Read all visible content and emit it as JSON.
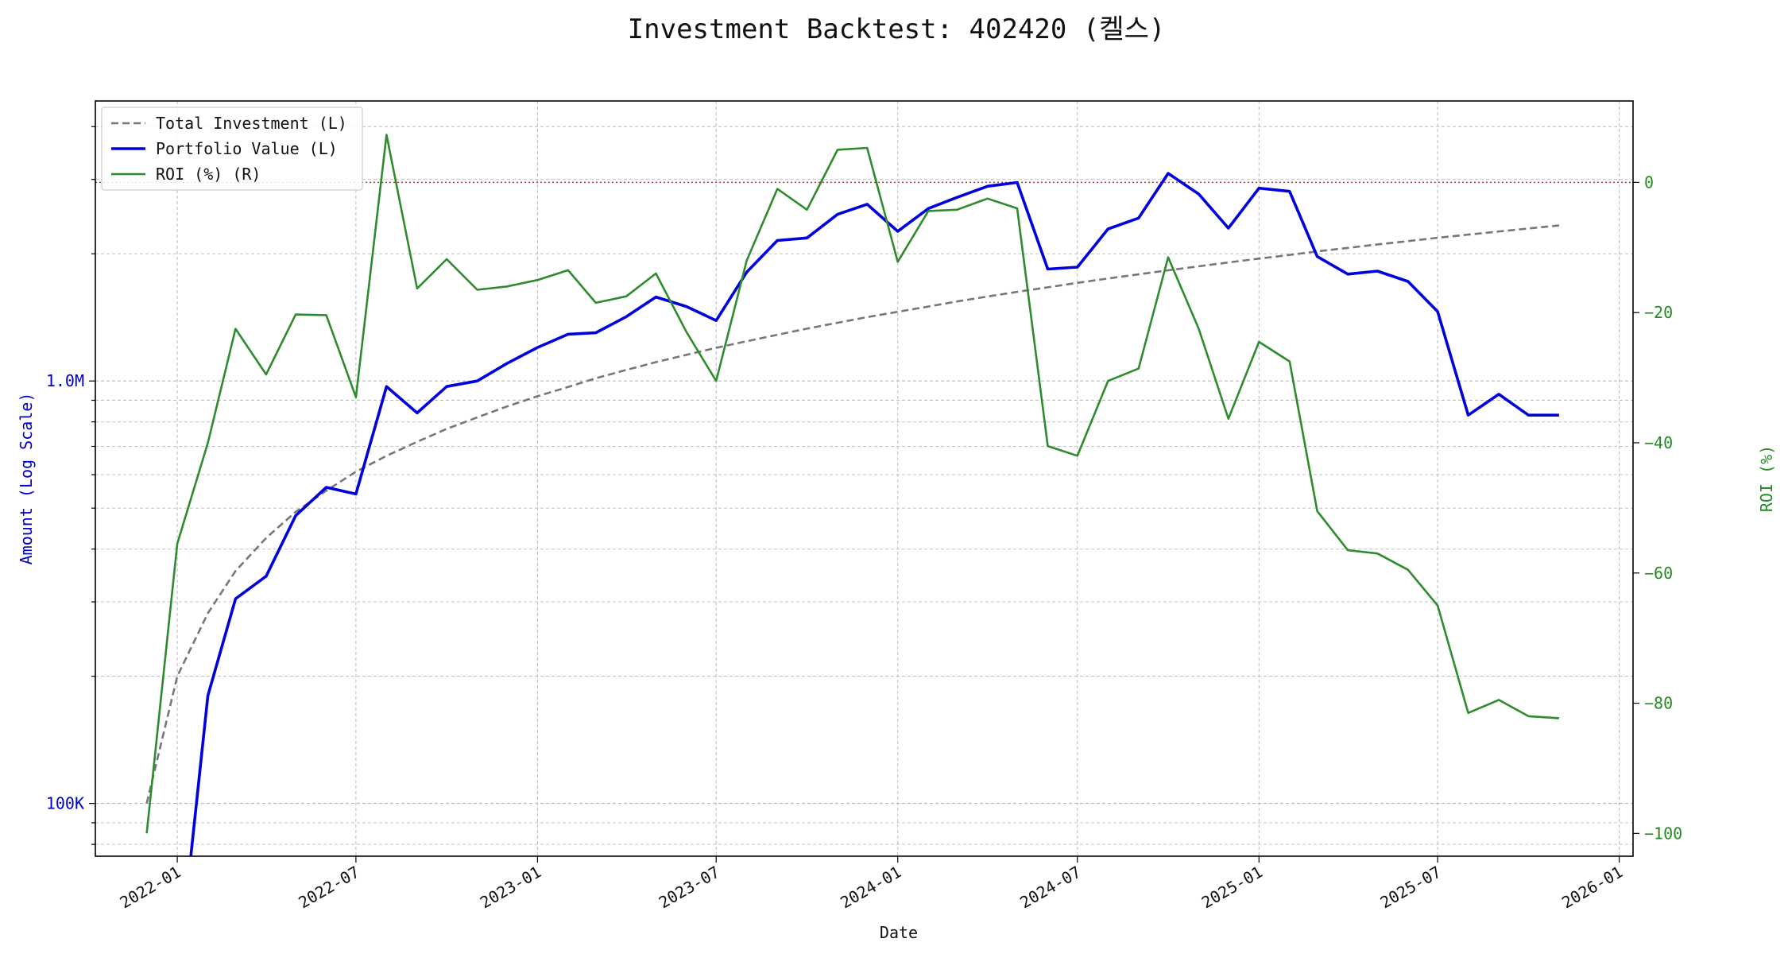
{
  "chart_data": {
    "type": "line",
    "title": "Investment Backtest: 402420 (켈스)",
    "xlabel": "Date",
    "ylabel_left": "Amount (Log Scale)",
    "ylabel_right": "ROI (%)",
    "left_axis_scale": "log",
    "ylim_left": [
      75000,
      4600000
    ],
    "ylim_right": [
      -103.5,
      12.5
    ],
    "xlim": [
      "2021-10-10",
      "2026-01-15"
    ],
    "grid": true,
    "legend_position": "top-left",
    "x_ticks": [
      "2022-01",
      "2022-07",
      "2023-01",
      "2023-07",
      "2024-01",
      "2024-07",
      "2025-01",
      "2025-07",
      "2026-01"
    ],
    "y_left_ticks": [
      {
        "value": 100000,
        "label": "100K"
      },
      {
        "value": 1000000,
        "label": "1.0M"
      }
    ],
    "y_right_ticks": [
      0,
      -20,
      -40,
      -60,
      -80,
      -100
    ],
    "reference_line": {
      "axis": "right",
      "value": 0,
      "color": "#d62728",
      "style": "dotted"
    },
    "colors": {
      "total_investment": "#777777",
      "portfolio_value": "#0000dd",
      "roi": "#2e8b2e",
      "left_axis": "#0000cc",
      "right_axis": "#228b22"
    },
    "x": [
      "2021-12-01",
      "2022-01-01",
      "2022-02-01",
      "2022-03-01",
      "2022-04-01",
      "2022-05-01",
      "2022-06-01",
      "2022-07-01",
      "2022-08-01",
      "2022-09-01",
      "2022-10-01",
      "2022-11-01",
      "2022-12-01",
      "2023-01-01",
      "2023-02-01",
      "2023-03-01",
      "2023-04-01",
      "2023-05-01",
      "2023-06-01",
      "2023-07-01",
      "2023-08-01",
      "2023-09-01",
      "2023-10-01",
      "2023-11-01",
      "2023-12-01",
      "2024-01-01",
      "2024-02-01",
      "2024-03-01",
      "2024-04-01",
      "2024-05-01",
      "2024-06-01",
      "2024-07-01",
      "2024-08-01",
      "2024-09-01",
      "2024-10-01",
      "2024-11-01",
      "2024-12-01",
      "2025-01-01",
      "2025-02-01",
      "2025-03-01",
      "2025-04-01",
      "2025-05-01",
      "2025-06-01",
      "2025-07-01",
      "2025-08-01",
      "2025-09-01",
      "2025-10-01",
      "2025-11-01"
    ],
    "series": [
      {
        "name": "Total Investment (L)",
        "axis": "left",
        "style": "dashed",
        "values": [
          100000,
          200000,
          282000,
          355000,
          425000,
          490000,
          550000,
          610000,
          665000,
          718000,
          770000,
          820000,
          870000,
          920000,
          968000,
          1015000,
          1062000,
          1108000,
          1153000,
          1198000,
          1242000,
          1286000,
          1330000,
          1373000,
          1416000,
          1458000,
          1500000,
          1542000,
          1584000,
          1625000,
          1666000,
          1707000,
          1748000,
          1788000,
          1828000,
          1868000,
          1908000,
          1948000,
          1987000,
          2026000,
          2065000,
          2104000,
          2143000,
          2182000,
          2220000,
          2258000,
          2296000,
          2334000
        ]
      },
      {
        "name": "Portfolio Value (L)",
        "axis": "left",
        "style": "solid",
        "values": [
          null,
          null,
          180000,
          305000,
          345000,
          480000,
          560000,
          540000,
          970000,
          840000,
          970000,
          1000000,
          1100000,
          1200000,
          1290000,
          1300000,
          1420000,
          1580000,
          1500000,
          1390000,
          1810000,
          2150000,
          2180000,
          2480000,
          2620000,
          2260000,
          2560000,
          2720000,
          2890000,
          2950000,
          1840000,
          1860000,
          2290000,
          2430000,
          3100000,
          2770000,
          2300000,
          2860000,
          2810000,
          1970000,
          1790000,
          1820000,
          1720000,
          1460000,
          830000,
          930000,
          830000,
          830000
        ]
      },
      {
        "name": "ROI (%) (R)",
        "axis": "right",
        "style": "solid",
        "values": [
          -100,
          -55.5,
          -40,
          -22.5,
          -29.5,
          -20.3,
          -20.4,
          -33,
          7.3,
          -16.3,
          -11.8,
          -16.5,
          -16,
          -15,
          -13.5,
          -18.5,
          -17.5,
          -14,
          -23,
          -30.5,
          -12,
          -1,
          -4.2,
          5,
          5.3,
          -12.2,
          -4.4,
          -4.2,
          -2.5,
          -4,
          -40.5,
          -42,
          -30.5,
          -28.6,
          -11.5,
          -22.5,
          -36.3,
          -24.5,
          -27.5,
          -50.5,
          -56.5,
          -57,
          -59.5,
          -65,
          -81.5,
          -79.5,
          -82,
          -82.3
        ]
      }
    ]
  }
}
